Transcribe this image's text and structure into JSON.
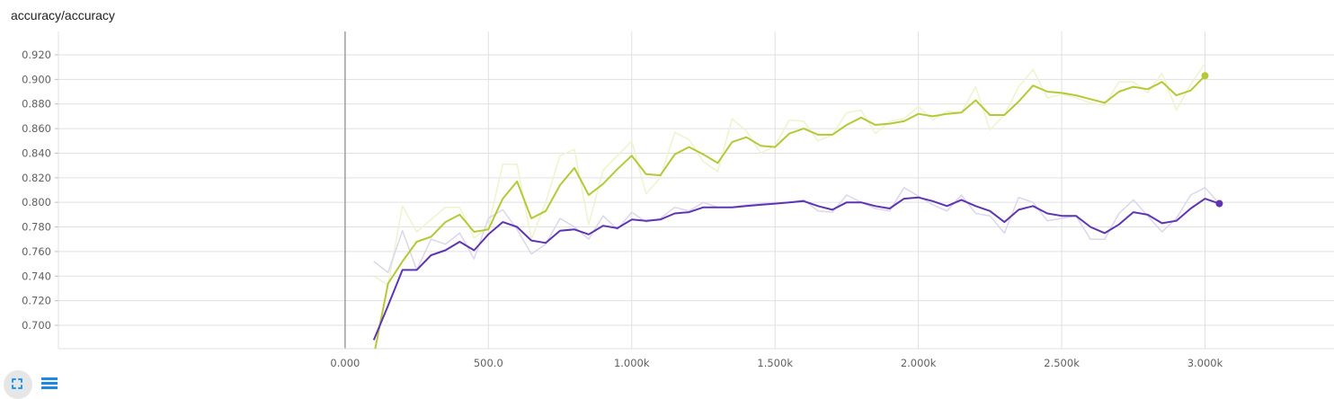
{
  "card": {
    "title": "accuracy/accuracy"
  },
  "icons": {
    "fit": "fit-domain-icon",
    "menu": "menu-lines-icon"
  },
  "chart_data": {
    "type": "line",
    "title": "accuracy/accuracy",
    "xlabel": "",
    "ylabel": "",
    "xlim": [
      -1000,
      3450
    ],
    "ylim": [
      0.681,
      0.939
    ],
    "x_ticks": [
      0,
      500,
      1000,
      1500,
      2000,
      2500,
      3000
    ],
    "x_tick_labels": [
      "0.000",
      "500.0",
      "1.000k",
      "1.500k",
      "2.000k",
      "2.500k",
      "3.000k"
    ],
    "y_ticks": [
      0.7,
      0.72,
      0.74,
      0.76,
      0.78,
      0.8,
      0.82,
      0.84,
      0.86,
      0.88,
      0.9,
      0.92
    ],
    "y_tick_labels": [
      "0.700",
      "0.720",
      "0.740",
      "0.760",
      "0.780",
      "0.800",
      "0.820",
      "0.840",
      "0.860",
      "0.880",
      "0.900",
      "0.920"
    ],
    "grid": true,
    "colors": {
      "green": "#b7c837",
      "purple": "#5e35b1",
      "green_raw": "#eef3cf",
      "purple_raw": "#dcd6ec",
      "grid": "#e0e0e0",
      "zero_line": "#9e9e9e"
    },
    "series": [
      {
        "color": "green",
        "x": [
          100,
          150,
          200,
          250,
          300,
          350,
          400,
          450,
          500,
          550,
          600,
          650,
          700,
          750,
          800,
          850,
          900,
          950,
          1000,
          1050,
          1100,
          1150,
          1200,
          1250,
          1300,
          1350,
          1400,
          1450,
          1500,
          1550,
          1600,
          1650,
          1700,
          1750,
          1800,
          1850,
          1900,
          1950,
          2000,
          2050,
          2100,
          2150,
          2200,
          2250,
          2300,
          2350,
          2400,
          2450,
          2500,
          2550,
          2600,
          2650,
          2700,
          2750,
          2800,
          2850,
          2900,
          2950,
          3000
        ],
        "smoothed": [
          0.675,
          0.734,
          0.752,
          0.768,
          0.772,
          0.784,
          0.79,
          0.776,
          0.778,
          0.803,
          0.817,
          0.787,
          0.793,
          0.814,
          0.828,
          0.806,
          0.815,
          0.827,
          0.838,
          0.823,
          0.822,
          0.839,
          0.845,
          0.839,
          0.832,
          0.849,
          0.853,
          0.846,
          0.845,
          0.856,
          0.86,
          0.855,
          0.855,
          0.863,
          0.869,
          0.863,
          0.864,
          0.866,
          0.872,
          0.87,
          0.872,
          0.873,
          0.883,
          0.871,
          0.871,
          0.882,
          0.895,
          0.89,
          0.889,
          0.887,
          0.884,
          0.881,
          0.89,
          0.894,
          0.892,
          0.898,
          0.887,
          0.891,
          0.903
        ],
        "raw": [
          0.74,
          0.733,
          0.797,
          0.776,
          0.786,
          0.796,
          0.796,
          0.771,
          0.78,
          0.831,
          0.831,
          0.77,
          0.8,
          0.838,
          0.843,
          0.782,
          0.826,
          0.838,
          0.85,
          0.807,
          0.82,
          0.857,
          0.851,
          0.833,
          0.825,
          0.868,
          0.858,
          0.84,
          0.846,
          0.867,
          0.866,
          0.85,
          0.855,
          0.873,
          0.875,
          0.856,
          0.866,
          0.868,
          0.878,
          0.867,
          0.874,
          0.873,
          0.894,
          0.859,
          0.871,
          0.894,
          0.908,
          0.885,
          0.888,
          0.885,
          0.881,
          0.879,
          0.898,
          0.898,
          0.889,
          0.905,
          0.875,
          0.896,
          0.913
        ]
      },
      {
        "color": "purple",
        "x": [
          100,
          150,
          200,
          250,
          300,
          350,
          400,
          450,
          500,
          550,
          600,
          650,
          700,
          750,
          800,
          850,
          900,
          950,
          1000,
          1050,
          1100,
          1150,
          1200,
          1250,
          1300,
          1350,
          1400,
          1450,
          1500,
          1550,
          1600,
          1650,
          1700,
          1750,
          1800,
          1850,
          1900,
          1950,
          2000,
          2050,
          2100,
          2150,
          2200,
          2250,
          2300,
          2350,
          2400,
          2450,
          2500,
          2550,
          2600,
          2650,
          2700,
          2750,
          2800,
          2850,
          2900,
          2950,
          3000,
          3050
        ],
        "smoothed": [
          0.688,
          0.716,
          0.745,
          0.745,
          0.757,
          0.761,
          0.768,
          0.761,
          0.774,
          0.784,
          0.78,
          0.769,
          0.767,
          0.777,
          0.778,
          0.774,
          0.781,
          0.779,
          0.786,
          0.785,
          0.786,
          0.791,
          0.792,
          0.796,
          0.796,
          0.796,
          0.797,
          0.798,
          0.799,
          0.8,
          0.801,
          0.797,
          0.794,
          0.8,
          0.8,
          0.797,
          0.795,
          0.803,
          0.804,
          0.801,
          0.797,
          0.802,
          0.797,
          0.793,
          0.784,
          0.794,
          0.797,
          0.791,
          0.789,
          0.789,
          0.78,
          0.775,
          0.782,
          0.792,
          0.79,
          0.783,
          0.785,
          0.795,
          0.803,
          0.799
        ],
        "raw": [
          0.752,
          0.743,
          0.777,
          0.745,
          0.77,
          0.766,
          0.775,
          0.754,
          0.787,
          0.794,
          0.778,
          0.758,
          0.766,
          0.787,
          0.78,
          0.77,
          0.789,
          0.778,
          0.792,
          0.784,
          0.787,
          0.796,
          0.793,
          0.8,
          0.796,
          0.796,
          0.798,
          0.799,
          0.8,
          0.8,
          0.802,
          0.793,
          0.792,
          0.806,
          0.8,
          0.795,
          0.793,
          0.812,
          0.805,
          0.798,
          0.793,
          0.806,
          0.791,
          0.789,
          0.775,
          0.804,
          0.8,
          0.785,
          0.787,
          0.789,
          0.77,
          0.77,
          0.791,
          0.802,
          0.789,
          0.776,
          0.787,
          0.806,
          0.812,
          0.799
        ]
      }
    ]
  }
}
